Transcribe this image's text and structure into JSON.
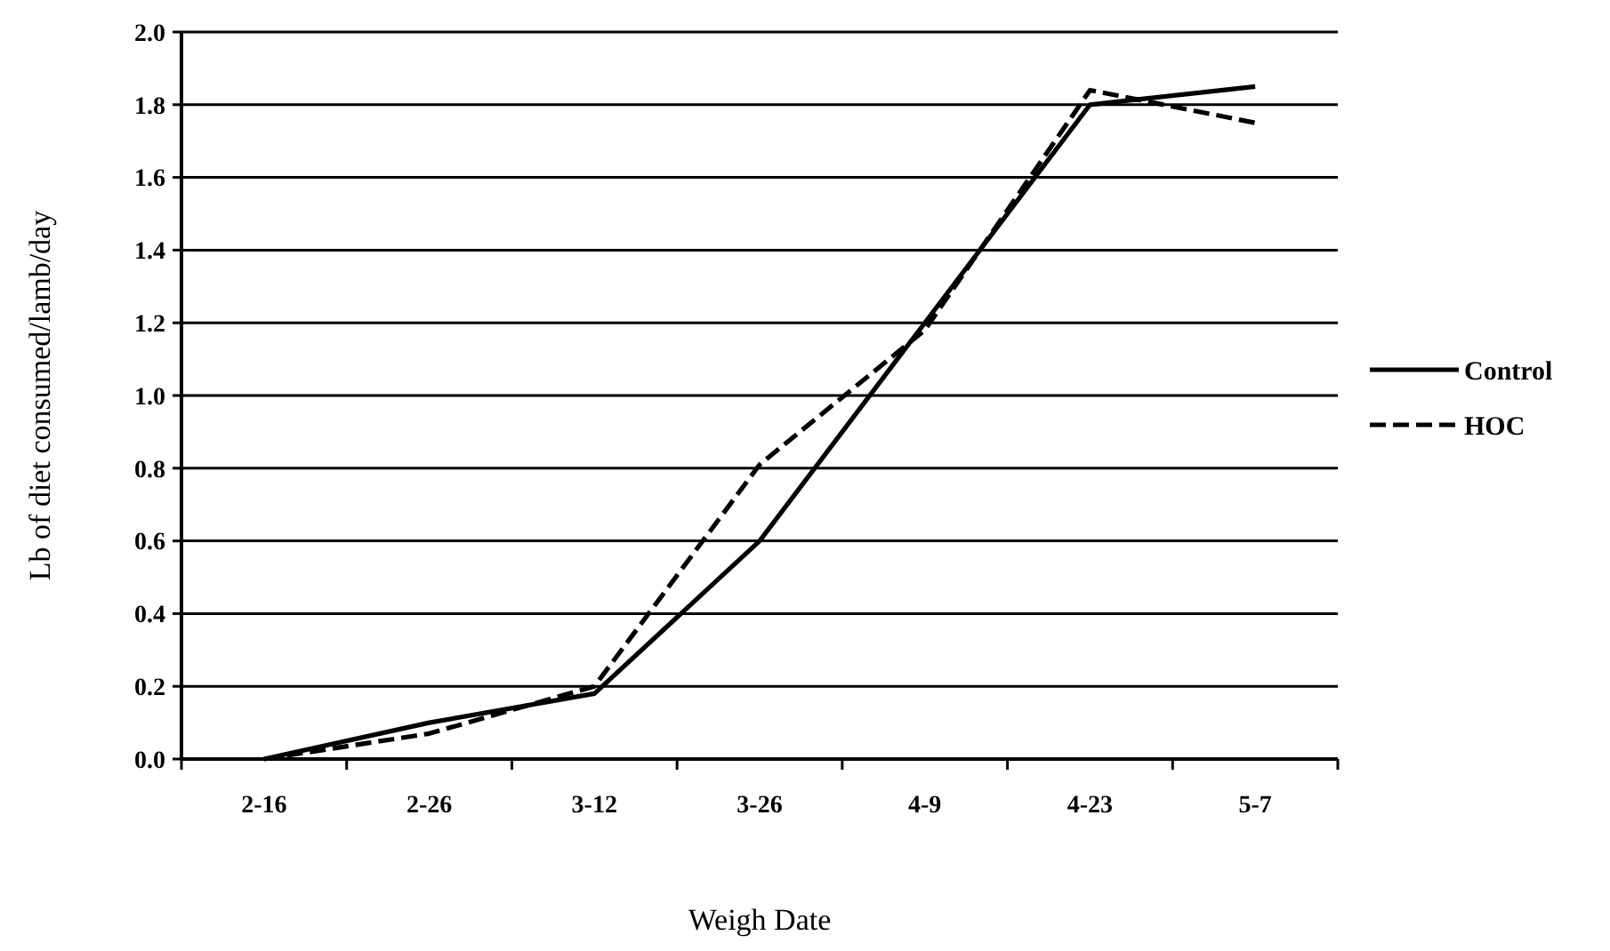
{
  "chart_data": {
    "type": "line",
    "xlabel": "Weigh Date",
    "ylabel": "Lb of diet consumed/lamb/day",
    "categories": [
      "2-16",
      "2-26",
      "3-12",
      "3-26",
      "4-9",
      "4-23",
      "5-7"
    ],
    "series": [
      {
        "name": "Control",
        "color": "#000000",
        "line_style": "solid",
        "values": [
          0,
          0.1,
          0.18,
          0.6,
          1.2,
          1.8,
          1.85
        ]
      },
      {
        "name": "HOC",
        "color": "#000000",
        "line_style": "dashed",
        "values": [
          0,
          0.07,
          0.2,
          0.81,
          1.18,
          1.84,
          1.75
        ]
      }
    ],
    "ylim": [
      0,
      2
    ],
    "yticks": [
      {
        "value": 0,
        "label": "0.0"
      },
      {
        "value": 0.2,
        "label": "0.2"
      },
      {
        "value": 0.4,
        "label": "0.4"
      },
      {
        "value": 0.6,
        "label": "0.6"
      },
      {
        "value": 0.8,
        "label": "0.8"
      },
      {
        "value": 1,
        "label": "1.0"
      },
      {
        "value": 1.2,
        "label": "1.2"
      },
      {
        "value": 1.4,
        "label": "1.4"
      },
      {
        "value": 1.6,
        "label": "1.6"
      },
      {
        "value": 1.8,
        "label": "1.8"
      },
      {
        "value": 2,
        "label": "2.0"
      }
    ],
    "grid": "y",
    "legend": "right",
    "marker": "none"
  }
}
